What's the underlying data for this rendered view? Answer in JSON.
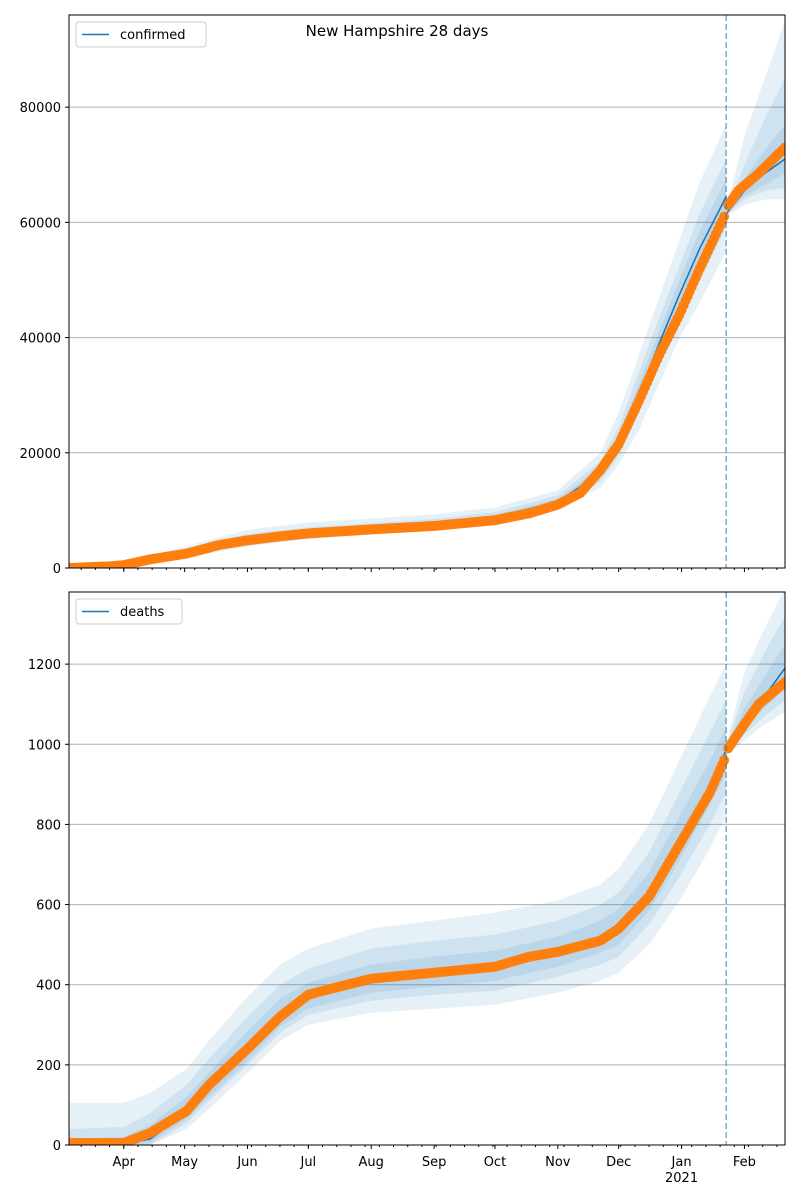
{
  "chart_data": [
    {
      "type": "line",
      "title": "New Hampshire 28 days",
      "x_unit": "days since 2020-03-05",
      "xlim": [
        0,
        353
      ],
      "ylim": [
        0,
        96000
      ],
      "yticks": [
        0,
        20000,
        40000,
        60000,
        80000
      ],
      "grid": "horizontal",
      "legend": {
        "position": "top-left",
        "entries": [
          "confirmed"
        ]
      },
      "forecast_start_day": 324,
      "model": {
        "name": "confirmed",
        "days": [
          0,
          27,
          58,
          88,
          118,
          149,
          180,
          210,
          241,
          262,
          271,
          281,
          291,
          301,
          311,
          324
        ],
        "values": [
          0,
          500,
          2600,
          4900,
          6100,
          6900,
          7600,
          8800,
          11500,
          16500,
          21500,
          30000,
          39000,
          47500,
          55500,
          64500
        ],
        "bands": [
          {
            "lower": [
              0,
              200,
              1800,
              3800,
              5000,
              5800,
              6500,
              7500,
              10000,
              14000,
              18000,
              24000,
              32000,
              40000,
              46000,
              55000
            ],
            "upper": [
              300,
              900,
              3800,
              6600,
              7900,
              8600,
              9300,
              10500,
              13500,
              20000,
              27000,
              37000,
              47000,
              57000,
              67000,
              77000
            ]
          },
          {
            "lower": [
              0,
              350,
              2100,
              4200,
              5400,
              6200,
              6900,
              8000,
              10600,
              15000,
              19500,
              27000,
              35000,
              43000,
              50000,
              59000
            ],
            "upper": [
              150,
              700,
              3300,
              5900,
              7100,
              7800,
              8500,
              9700,
              12600,
              18500,
              24500,
              34000,
              43500,
              52500,
              61500,
              71000
            ]
          },
          {
            "lower": [
              0,
              420,
              2300,
              4500,
              5700,
              6500,
              7200,
              8400,
              11000,
              15700,
              20500,
              28500,
              37000,
              45000,
              52500,
              61500
            ],
            "upper": [
              80,
              600,
              2900,
              5400,
              6600,
              7300,
              8000,
              9200,
              12000,
              17500,
              23000,
              32000,
              41000,
              50000,
              58500,
              67500
            ]
          }
        ]
      },
      "forecast": {
        "days": [
          324,
          333,
          343,
          353
        ],
        "values": [
          61500,
          65500,
          68500,
          71000
        ],
        "bands": [
          {
            "lower": [
              61000,
              63000,
              64000,
              64000
            ],
            "upper": [
              62000,
              75000,
              85000,
              95000
            ]
          },
          {
            "lower": [
              61200,
              64000,
              65500,
              66000
            ],
            "upper": [
              61800,
              70000,
              78000,
              85000
            ]
          },
          {
            "lower": [
              61400,
              64500,
              66500,
              68500
            ],
            "upper": [
              61600,
              67500,
              72500,
              77000
            ]
          }
        ]
      },
      "observed": {
        "days": [
          0,
          20,
          27,
          40,
          58,
          74,
          88,
          104,
          118,
          149,
          180,
          210,
          227,
          241,
          252,
          262,
          271,
          281,
          291,
          301,
          311,
          323,
          325,
          330,
          340,
          353
        ],
        "values": [
          0,
          300,
          500,
          1500,
          2500,
          4000,
          4800,
          5500,
          6000,
          6700,
          7300,
          8300,
          9500,
          11000,
          13000,
          17000,
          21500,
          29000,
          37000,
          44000,
          52000,
          61000,
          63000,
          65500,
          68500,
          73000
        ]
      }
    },
    {
      "type": "line",
      "x_unit": "days since 2020-03-05",
      "xlim": [
        0,
        353
      ],
      "ylim": [
        0,
        1380
      ],
      "yticks": [
        0,
        200,
        400,
        600,
        800,
        1000,
        1200
      ],
      "grid": "horizontal",
      "legend": {
        "position": "top-left",
        "entries": [
          "deaths"
        ]
      },
      "forecast_start_day": 324,
      "xticks": [
        {
          "day": 27,
          "label": "Apr"
        },
        {
          "day": 57,
          "label": "May"
        },
        {
          "day": 88,
          "label": "Jun"
        },
        {
          "day": 118,
          "label": "Jul"
        },
        {
          "day": 149,
          "label": "Aug"
        },
        {
          "day": 180,
          "label": "Sep"
        },
        {
          "day": 210,
          "label": "Oct"
        },
        {
          "day": 241,
          "label": "Nov"
        },
        {
          "day": 271,
          "label": "Dec"
        },
        {
          "day": 302,
          "label": "Jan",
          "sublabel": "2021"
        },
        {
          "day": 333,
          "label": "Feb"
        }
      ],
      "model": {
        "name": "deaths",
        "days": [
          0,
          27,
          40,
          58,
          69,
          88,
          104,
          118,
          149,
          180,
          210,
          241,
          262,
          271,
          286,
          301,
          316,
          324
        ],
        "values": [
          0,
          3,
          15,
          80,
          140,
          235,
          320,
          370,
          410,
          430,
          445,
          480,
          520,
          545,
          625,
          760,
          900,
          985
        ],
        "bands": [
          {
            "lower": [
              0,
              0,
              0,
              40,
              90,
              180,
              260,
              300,
              330,
              340,
              350,
              380,
              410,
              430,
              500,
              610,
              740,
              820
            ],
            "upper": [
              105,
              105,
              130,
              190,
              260,
              370,
              450,
              490,
              540,
              560,
              580,
              610,
              650,
              690,
              800,
              960,
              1120,
              1200
            ]
          },
          {
            "lower": [
              0,
              0,
              0,
              55,
              110,
              200,
              280,
              325,
              360,
              375,
              385,
              420,
              450,
              470,
              550,
              670,
              800,
              880
            ],
            "upper": [
              40,
              45,
              80,
              150,
              215,
              320,
              400,
              440,
              490,
              510,
              525,
              560,
              600,
              630,
              730,
              880,
              1030,
              1110
            ]
          },
          {
            "lower": [
              0,
              0,
              5,
              65,
              120,
              210,
              295,
              340,
              380,
              395,
              410,
              445,
              480,
              500,
              585,
              710,
              850,
              930
            ],
            "upper": [
              15,
              20,
              50,
              120,
              180,
              285,
              365,
              405,
              450,
              470,
              485,
              520,
              560,
              590,
              680,
              820,
              960,
              1040
            ]
          }
        ]
      },
      "forecast": {
        "days": [
          324,
          333,
          343,
          353
        ],
        "values": [
          985,
          1060,
          1120,
          1190
        ],
        "bands": [
          {
            "lower": [
              970,
              1010,
              1050,
              1080
            ],
            "upper": [
              1000,
              1180,
              1290,
              1390
            ]
          },
          {
            "lower": [
              975,
              1025,
              1070,
              1110
            ],
            "upper": [
              995,
              1130,
              1230,
              1320
            ]
          },
          {
            "lower": [
              980,
              1040,
              1090,
              1140
            ],
            "upper": [
              990,
              1090,
              1170,
              1250
            ]
          }
        ]
      },
      "observed": {
        "days": [
          0,
          20,
          27,
          40,
          58,
          69,
          88,
          104,
          118,
          133,
          149,
          180,
          210,
          227,
          241,
          262,
          271,
          286,
          301,
          316,
          323,
          325,
          333,
          340,
          353
        ],
        "values": [
          5,
          5,
          5,
          30,
          85,
          150,
          240,
          320,
          375,
          395,
          415,
          430,
          445,
          470,
          482,
          510,
          540,
          620,
          750,
          880,
          960,
          990,
          1050,
          1100,
          1155
        ]
      }
    }
  ],
  "colors": {
    "model": "#1f77b4",
    "observed": "#ff7f0e",
    "grid": "#b0b0b0"
  }
}
